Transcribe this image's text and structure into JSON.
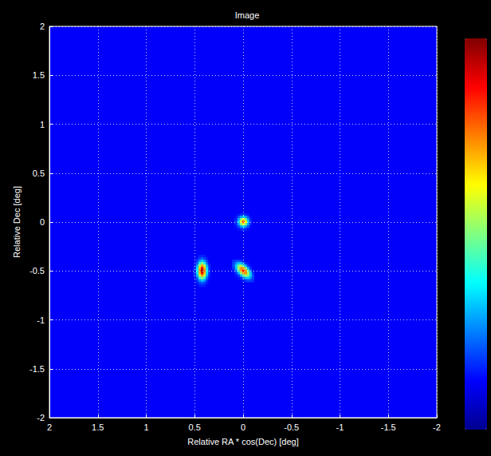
{
  "chart_data": {
    "type": "heatmap",
    "title": "Image",
    "x_label": "Relative RA * cos(Dec) [deg]",
    "y_label": "Relative Dec [deg]",
    "xlim": [
      2,
      -2
    ],
    "ylim": [
      -2,
      2
    ],
    "xticks": [
      2,
      1.5,
      1,
      0.5,
      0,
      -0.5,
      -1,
      -1.5,
      -2
    ],
    "yticks": [
      -2,
      -1.5,
      -1,
      -0.5,
      0,
      0.5,
      1,
      1.5,
      2
    ],
    "grid": true,
    "tick_labels": true,
    "cell_size": 0.025,
    "floor": 0.12,
    "colorbar": {
      "range": [
        0,
        1
      ]
    },
    "cells": [
      [
        -0.05,
        0.075,
        0.14
      ],
      [
        -0.025,
        0.075,
        0.16
      ],
      [
        0,
        0.075,
        0.18
      ],
      [
        0.025,
        0.075,
        0.16
      ],
      [
        0.05,
        0.075,
        0.14
      ],
      [
        -0.075,
        0.05,
        0.14
      ],
      [
        -0.05,
        0.05,
        0.2
      ],
      [
        -0.025,
        0.05,
        0.28
      ],
      [
        0,
        0.05,
        0.33
      ],
      [
        0.025,
        0.05,
        0.28
      ],
      [
        0.05,
        0.05,
        0.2
      ],
      [
        0.075,
        0.05,
        0.14
      ],
      [
        -0.075,
        0.025,
        0.16
      ],
      [
        -0.05,
        0.025,
        0.28
      ],
      [
        -0.025,
        0.025,
        0.5
      ],
      [
        0,
        0.025,
        0.62
      ],
      [
        0.025,
        0.025,
        0.5
      ],
      [
        0.05,
        0.025,
        0.28
      ],
      [
        0.075,
        0.025,
        0.16
      ],
      [
        -0.075,
        0,
        0.18
      ],
      [
        -0.05,
        0,
        0.33
      ],
      [
        -0.025,
        0,
        0.62
      ],
      [
        0,
        0,
        0.82
      ],
      [
        0.025,
        0,
        0.62
      ],
      [
        0.05,
        0,
        0.33
      ],
      [
        0.075,
        0,
        0.18
      ],
      [
        -0.075,
        -0.025,
        0.16
      ],
      [
        -0.05,
        -0.025,
        0.28
      ],
      [
        -0.025,
        -0.025,
        0.5
      ],
      [
        0,
        -0.025,
        0.62
      ],
      [
        0.025,
        -0.025,
        0.5
      ],
      [
        0.05,
        -0.025,
        0.28
      ],
      [
        0.075,
        -0.025,
        0.16
      ],
      [
        -0.075,
        -0.05,
        0.14
      ],
      [
        -0.05,
        -0.05,
        0.2
      ],
      [
        -0.025,
        -0.05,
        0.28
      ],
      [
        0,
        -0.05,
        0.33
      ],
      [
        0.025,
        -0.05,
        0.28
      ],
      [
        0.05,
        -0.05,
        0.2
      ],
      [
        0.075,
        -0.05,
        0.14
      ],
      [
        -0.05,
        -0.075,
        0.14
      ],
      [
        -0.025,
        -0.075,
        0.16
      ],
      [
        0,
        -0.075,
        0.18
      ],
      [
        0.025,
        -0.075,
        0.16
      ],
      [
        0.05,
        -0.075,
        0.14
      ],
      [
        0.4,
        -0.35,
        0.15
      ],
      [
        0.425,
        -0.35,
        0.16
      ],
      [
        0.45,
        -0.35,
        0.15
      ],
      [
        0.375,
        -0.375,
        0.15
      ],
      [
        0.4,
        -0.375,
        0.19
      ],
      [
        0.425,
        -0.375,
        0.22
      ],
      [
        0.45,
        -0.375,
        0.19
      ],
      [
        0.475,
        -0.375,
        0.15
      ],
      [
        0.375,
        -0.4,
        0.18
      ],
      [
        0.4,
        -0.4,
        0.28
      ],
      [
        0.425,
        -0.4,
        0.33
      ],
      [
        0.45,
        -0.4,
        0.28
      ],
      [
        0.475,
        -0.4,
        0.18
      ],
      [
        0.35,
        -0.425,
        0.14
      ],
      [
        0.375,
        -0.425,
        0.23
      ],
      [
        0.4,
        -0.425,
        0.41
      ],
      [
        0.425,
        -0.425,
        0.51
      ],
      [
        0.45,
        -0.425,
        0.41
      ],
      [
        0.475,
        -0.425,
        0.23
      ],
      [
        0.5,
        -0.425,
        0.14
      ],
      [
        0.35,
        -0.45,
        0.16
      ],
      [
        0.375,
        -0.45,
        0.3
      ],
      [
        0.4,
        -0.45,
        0.56
      ],
      [
        0.425,
        -0.45,
        0.72
      ],
      [
        0.45,
        -0.45,
        0.56
      ],
      [
        0.475,
        -0.45,
        0.3
      ],
      [
        0.5,
        -0.45,
        0.16
      ],
      [
        0.35,
        -0.475,
        0.17
      ],
      [
        0.375,
        -0.475,
        0.35
      ],
      [
        0.4,
        -0.475,
        0.69
      ],
      [
        0.425,
        -0.475,
        0.9
      ],
      [
        0.45,
        -0.475,
        0.69
      ],
      [
        0.475,
        -0.475,
        0.35
      ],
      [
        0.5,
        -0.475,
        0.17
      ],
      [
        0.35,
        -0.5,
        0.17
      ],
      [
        0.375,
        -0.5,
        0.37
      ],
      [
        0.4,
        -0.5,
        0.75
      ],
      [
        0.425,
        -0.5,
        0.97
      ],
      [
        0.45,
        -0.5,
        0.75
      ],
      [
        0.475,
        -0.5,
        0.37
      ],
      [
        0.5,
        -0.5,
        0.17
      ],
      [
        0.35,
        -0.525,
        0.17
      ],
      [
        0.375,
        -0.525,
        0.35
      ],
      [
        0.4,
        -0.525,
        0.69
      ],
      [
        0.425,
        -0.525,
        0.9
      ],
      [
        0.45,
        -0.525,
        0.69
      ],
      [
        0.475,
        -0.525,
        0.35
      ],
      [
        0.5,
        -0.525,
        0.17
      ],
      [
        0.35,
        -0.55,
        0.16
      ],
      [
        0.375,
        -0.55,
        0.3
      ],
      [
        0.4,
        -0.55,
        0.56
      ],
      [
        0.425,
        -0.55,
        0.72
      ],
      [
        0.45,
        -0.55,
        0.56
      ],
      [
        0.475,
        -0.55,
        0.3
      ],
      [
        0.5,
        -0.55,
        0.16
      ],
      [
        0.35,
        -0.575,
        0.14
      ],
      [
        0.375,
        -0.575,
        0.23
      ],
      [
        0.4,
        -0.575,
        0.41
      ],
      [
        0.425,
        -0.575,
        0.51
      ],
      [
        0.45,
        -0.575,
        0.41
      ],
      [
        0.475,
        -0.575,
        0.23
      ],
      [
        0.5,
        -0.575,
        0.14
      ],
      [
        0.375,
        -0.6,
        0.18
      ],
      [
        0.4,
        -0.6,
        0.28
      ],
      [
        0.425,
        -0.6,
        0.33
      ],
      [
        0.45,
        -0.6,
        0.28
      ],
      [
        0.475,
        -0.6,
        0.18
      ],
      [
        0.375,
        -0.625,
        0.15
      ],
      [
        0.4,
        -0.625,
        0.19
      ],
      [
        0.425,
        -0.625,
        0.22
      ],
      [
        0.45,
        -0.625,
        0.19
      ],
      [
        0.475,
        -0.625,
        0.15
      ],
      [
        0.4,
        -0.65,
        0.15
      ],
      [
        0.425,
        -0.65,
        0.16
      ],
      [
        0.45,
        -0.65,
        0.15
      ],
      [
        0,
        -0.4,
        0.15
      ],
      [
        0.025,
        -0.4,
        0.18
      ],
      [
        0.05,
        -0.4,
        0.2
      ],
      [
        0.075,
        -0.4,
        0.19
      ],
      [
        0.1,
        -0.4,
        0.17
      ],
      [
        -0.05,
        -0.425,
        0.14
      ],
      [
        -0.025,
        -0.425,
        0.17
      ],
      [
        0,
        -0.425,
        0.25
      ],
      [
        0.025,
        -0.425,
        0.32
      ],
      [
        0.05,
        -0.425,
        0.33
      ],
      [
        0.075,
        -0.425,
        0.27
      ],
      [
        0.1,
        -0.425,
        0.19
      ],
      [
        -0.075,
        -0.45,
        0.14
      ],
      [
        -0.05,
        -0.45,
        0.18
      ],
      [
        -0.025,
        -0.45,
        0.3
      ],
      [
        0,
        -0.45,
        0.45
      ],
      [
        0.025,
        -0.45,
        0.54
      ],
      [
        0.05,
        -0.45,
        0.49
      ],
      [
        0.075,
        -0.45,
        0.33
      ],
      [
        0.1,
        -0.45,
        0.2
      ],
      [
        -0.075,
        -0.475,
        0.17
      ],
      [
        -0.05,
        -0.475,
        0.3
      ],
      [
        -0.025,
        -0.475,
        0.52
      ],
      [
        0,
        -0.475,
        0.72
      ],
      [
        0.025,
        -0.475,
        0.73
      ],
      [
        0.05,
        -0.475,
        0.54
      ],
      [
        0.075,
        -0.475,
        0.32
      ],
      [
        0.1,
        -0.475,
        0.18
      ],
      [
        -0.1,
        -0.5,
        0.15
      ],
      [
        -0.075,
        -0.5,
        0.25
      ],
      [
        -0.05,
        -0.5,
        0.45
      ],
      [
        -0.025,
        -0.5,
        0.72
      ],
      [
        0,
        -0.5,
        0.85
      ],
      [
        0.025,
        -0.5,
        0.72
      ],
      [
        0.05,
        -0.5,
        0.45
      ],
      [
        0.075,
        -0.5,
        0.25
      ],
      [
        0.1,
        -0.5,
        0.15
      ],
      [
        -0.1,
        -0.525,
        0.18
      ],
      [
        -0.075,
        -0.525,
        0.32
      ],
      [
        -0.05,
        -0.525,
        0.54
      ],
      [
        -0.025,
        -0.525,
        0.73
      ],
      [
        0,
        -0.525,
        0.72
      ],
      [
        0.025,
        -0.525,
        0.52
      ],
      [
        0.05,
        -0.525,
        0.3
      ],
      [
        0.075,
        -0.525,
        0.17
      ],
      [
        -0.1,
        -0.55,
        0.2
      ],
      [
        -0.075,
        -0.55,
        0.33
      ],
      [
        -0.05,
        -0.55,
        0.49
      ],
      [
        -0.025,
        -0.55,
        0.54
      ],
      [
        0,
        -0.55,
        0.45
      ],
      [
        0.025,
        -0.55,
        0.3
      ],
      [
        0.05,
        -0.55,
        0.18
      ],
      [
        0.075,
        -0.55,
        0.14
      ],
      [
        -0.1,
        -0.575,
        0.19
      ],
      [
        -0.075,
        -0.575,
        0.27
      ],
      [
        -0.05,
        -0.575,
        0.33
      ],
      [
        -0.025,
        -0.575,
        0.32
      ],
      [
        0,
        -0.575,
        0.25
      ],
      [
        0.025,
        -0.575,
        0.17
      ],
      [
        0.05,
        -0.575,
        0.14
      ],
      [
        -0.1,
        -0.6,
        0.17
      ],
      [
        -0.075,
        -0.6,
        0.19
      ],
      [
        -0.05,
        -0.6,
        0.2
      ],
      [
        -0.025,
        -0.6,
        0.18
      ],
      [
        0,
        -0.6,
        0.15
      ]
    ]
  }
}
